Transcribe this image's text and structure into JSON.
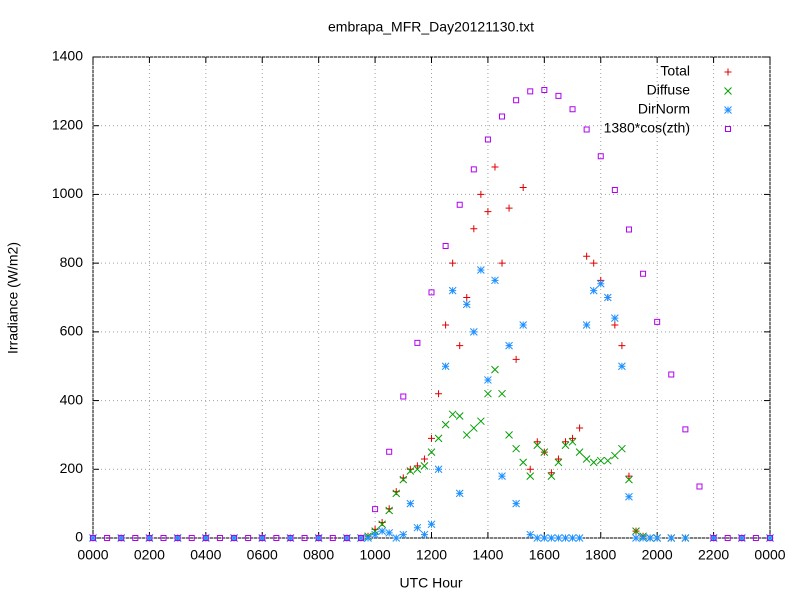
{
  "chart_data": {
    "type": "scatter",
    "title": "embrapa_MFR_Day20121130.txt",
    "x_label": "UTC Hour",
    "y_label": "Irradiance (W/m2)",
    "xlim": [
      0,
      24
    ],
    "ylim": [
      0,
      1400
    ],
    "xticks": [
      {
        "value": 0,
        "label": "0000"
      },
      {
        "value": 2,
        "label": "0200"
      },
      {
        "value": 4,
        "label": "0400"
      },
      {
        "value": 6,
        "label": "0600"
      },
      {
        "value": 8,
        "label": "0800"
      },
      {
        "value": 10,
        "label": "1000"
      },
      {
        "value": 12,
        "label": "1200"
      },
      {
        "value": 14,
        "label": "1400"
      },
      {
        "value": 16,
        "label": "1600"
      },
      {
        "value": 18,
        "label": "1800"
      },
      {
        "value": 20,
        "label": "2000"
      },
      {
        "value": 22,
        "label": "2200"
      },
      {
        "value": 24,
        "label": "0000"
      }
    ],
    "yticks": [
      0,
      200,
      400,
      600,
      800,
      1000,
      1200,
      1400
    ],
    "grid": true,
    "legend": "top-right",
    "series": [
      {
        "name": "Total",
        "color": "#e00000",
        "marker": "plus",
        "x": [
          0,
          1,
          2,
          3,
          4,
          5,
          6,
          7,
          8,
          9,
          9.5,
          9.75,
          10,
          10.25,
          10.5,
          10.75,
          11,
          11.25,
          11.5,
          11.75,
          12,
          12.25,
          12.5,
          12.75,
          13,
          13.25,
          13.5,
          13.75,
          14,
          14.25,
          14.5,
          14.75,
          15,
          15.25,
          15.5,
          15.75,
          16,
          16.25,
          16.5,
          16.75,
          17,
          17.25,
          17.5,
          17.75,
          18,
          18.25,
          18.5,
          18.75,
          19,
          19.25,
          19.5,
          19.75,
          20,
          20.5,
          21,
          22,
          23,
          24
        ],
        "values": [
          0,
          0,
          0,
          0,
          0,
          0,
          0,
          0,
          0,
          0,
          0,
          5,
          25,
          45,
          85,
          135,
          175,
          200,
          210,
          230,
          290,
          420,
          620,
          800,
          560,
          700,
          900,
          1000,
          950,
          1080,
          800,
          960,
          520,
          1020,
          200,
          280,
          250,
          190,
          230,
          280,
          290,
          320,
          820,
          800,
          750,
          700,
          620,
          560,
          180,
          20,
          5,
          0,
          0,
          0,
          0,
          0,
          0,
          0
        ]
      },
      {
        "name": "Diffuse",
        "color": "#00a000",
        "marker": "cross",
        "x": [
          0,
          1,
          2,
          3,
          4,
          5,
          6,
          7,
          8,
          9,
          9.5,
          9.75,
          10,
          10.25,
          10.5,
          10.75,
          11,
          11.25,
          11.5,
          11.75,
          12,
          12.25,
          12.5,
          12.75,
          13,
          13.25,
          13.5,
          13.75,
          14,
          14.25,
          14.5,
          14.75,
          15,
          15.25,
          15.5,
          15.75,
          16,
          16.25,
          16.5,
          16.75,
          17,
          17.25,
          17.5,
          17.75,
          18,
          18.25,
          18.5,
          18.75,
          19,
          19.25,
          19.5,
          19.75,
          20,
          20.5,
          21,
          22,
          23,
          24
        ],
        "values": [
          0,
          0,
          0,
          0,
          0,
          0,
          0,
          0,
          0,
          0,
          0,
          5,
          20,
          40,
          80,
          130,
          170,
          195,
          200,
          210,
          250,
          290,
          330,
          360,
          355,
          300,
          320,
          340,
          420,
          490,
          420,
          300,
          260,
          220,
          180,
          270,
          250,
          180,
          220,
          270,
          280,
          250,
          230,
          220,
          225,
          225,
          240,
          260,
          170,
          20,
          5,
          0,
          0,
          0,
          0,
          0,
          0,
          0
        ]
      },
      {
        "name": "DirNorm",
        "color": "#1e90ff",
        "marker": "star",
        "x": [
          0,
          1,
          2,
          3,
          4,
          5,
          6,
          7,
          8,
          9,
          9.5,
          9.75,
          10,
          10.25,
          10.5,
          10.75,
          11,
          11.25,
          11.5,
          11.75,
          12,
          12.25,
          12.5,
          12.75,
          13,
          13.25,
          13.5,
          13.75,
          14,
          14.25,
          14.5,
          14.75,
          15,
          15.25,
          15.5,
          15.75,
          16,
          16.25,
          16.5,
          16.75,
          17,
          17.25,
          17.5,
          17.75,
          18,
          18.25,
          18.5,
          18.75,
          19,
          19.25,
          19.5,
          19.75,
          20,
          20.5,
          21,
          22,
          23,
          24
        ],
        "values": [
          0,
          0,
          0,
          0,
          0,
          0,
          0,
          0,
          0,
          0,
          0,
          0,
          10,
          20,
          15,
          0,
          10,
          100,
          30,
          10,
          40,
          200,
          500,
          720,
          130,
          680,
          600,
          780,
          460,
          750,
          180,
          560,
          100,
          620,
          10,
          0,
          0,
          0,
          0,
          0,
          0,
          0,
          620,
          720,
          740,
          700,
          640,
          500,
          120,
          0,
          0,
          0,
          0,
          0,
          0,
          0,
          0,
          0
        ]
      },
      {
        "name": "1380*cos(zth)",
        "color": "#b000f0",
        "marker": "square",
        "x": [
          0,
          0.5,
          1,
          1.5,
          2,
          2.5,
          3,
          3.5,
          4,
          4.5,
          5,
          5.5,
          6,
          6.5,
          7,
          7.5,
          8,
          8.5,
          9,
          9.5,
          10,
          10.5,
          11,
          11.5,
          12,
          12.5,
          13,
          13.5,
          14,
          14.5,
          15,
          15.5,
          16,
          16.5,
          17,
          17.5,
          18,
          18.5,
          19,
          19.5,
          20,
          20.5,
          21,
          21.5,
          22,
          22.5,
          23,
          23.5,
          24
        ],
        "values": [
          0,
          0,
          0,
          0,
          0,
          0,
          0,
          0,
          0,
          0,
          0,
          0,
          0,
          0,
          0,
          0,
          0,
          0,
          0,
          0,
          84,
          251,
          412,
          568,
          715,
          850,
          970,
          1073,
          1160,
          1227,
          1274,
          1300,
          1304,
          1287,
          1248,
          1189,
          1111,
          1013,
          898,
          769,
          629,
          476,
          316,
          150,
          0,
          0,
          0,
          0,
          0
        ]
      }
    ]
  }
}
